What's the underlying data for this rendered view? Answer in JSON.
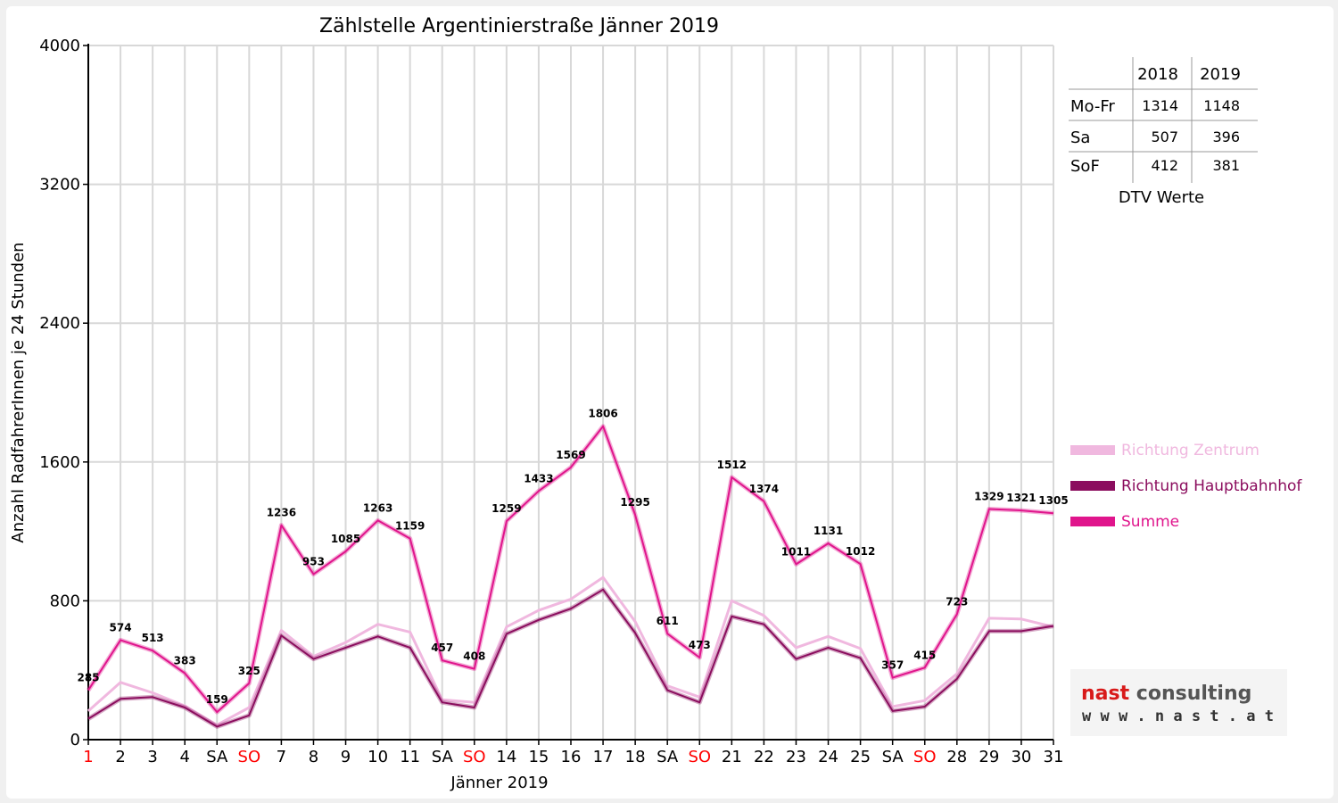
{
  "chart_data": {
    "type": "line",
    "title": "Zählstelle Argentinierstraße Jänner 2019",
    "xlabel": "Jänner 2019",
    "ylabel": "Anzahl RadfahrerInnen je 24 Stunden",
    "ylim": [
      0,
      4000
    ],
    "yticks": [
      "0",
      "800",
      "1600",
      "2400",
      "3200",
      "4000"
    ],
    "grid": true,
    "legend_position": "right",
    "categories": [
      "1",
      "2",
      "3",
      "4",
      "SA",
      "SO",
      "7",
      "8",
      "9",
      "10",
      "11",
      "SA",
      "SO",
      "14",
      "15",
      "16",
      "17",
      "18",
      "SA",
      "SO",
      "21",
      "22",
      "23",
      "24",
      "25",
      "SA",
      "SO",
      "28",
      "29",
      "30",
      "31"
    ],
    "red_categories": [
      0,
      5,
      12,
      19,
      26
    ],
    "series": [
      {
        "name": "Richtung Zentrum",
        "color": "#f0b8df",
        "values": [
          165,
          330,
          270,
          195,
          85,
          185,
          630,
          480,
          560,
          665,
          620,
          230,
          215,
          650,
          745,
          810,
          935,
          680,
          310,
          245,
          800,
          715,
          530,
          595,
          525,
          190,
          225,
          380,
          700,
          695,
          650
        ]
      },
      {
        "name": "Richtung Hauptbahnhof",
        "color": "#8b0d5e",
        "values": [
          120,
          235,
          245,
          185,
          75,
          140,
          600,
          465,
          530,
          595,
          530,
          215,
          185,
          610,
          690,
          755,
          865,
          615,
          285,
          215,
          710,
          665,
          465,
          530,
          470,
          165,
          190,
          350,
          625,
          625,
          655
        ]
      },
      {
        "name": "Summe",
        "color": "#e0158c",
        "values": [
          285,
          574,
          513,
          383,
          159,
          325,
          1236,
          953,
          1085,
          1263,
          1159,
          457,
          408,
          1259,
          1433,
          1569,
          1806,
          1295,
          611,
          473,
          1512,
          1374,
          1011,
          1131,
          1012,
          357,
          415,
          723,
          1329,
          1321,
          1305
        ]
      }
    ],
    "data_labels": [
      "285",
      "574",
      "513",
      "383",
      "159",
      "325",
      "1236",
      "953",
      "1085",
      "1263",
      "1159",
      "457",
      "408",
      "1259",
      "1433",
      "1569",
      "1806",
      "1295",
      "611",
      "473",
      "1512",
      "1374",
      "1011",
      "1131",
      "1012",
      "357",
      "415",
      "723",
      "1329",
      "1321",
      "1305"
    ]
  },
  "dtv_table": {
    "headers": [
      "2018",
      "2019"
    ],
    "rows": [
      {
        "label": "Mo-Fr",
        "v2018": "1314",
        "v2019": "1148"
      },
      {
        "label": "Sa",
        "v2018": "507",
        "v2019": "396"
      },
      {
        "label": "SoF",
        "v2018": "412",
        "v2019": "381"
      }
    ],
    "caption": "DTV Werte"
  },
  "logo": {
    "word1": "nast",
    "word2": "consulting",
    "url": "w w w . n a s t . a t",
    "color1": "#d81a1a",
    "color2": "#555555"
  },
  "colors": {
    "weekend_red": "#ff0000",
    "grid": "#d8d8d8"
  }
}
